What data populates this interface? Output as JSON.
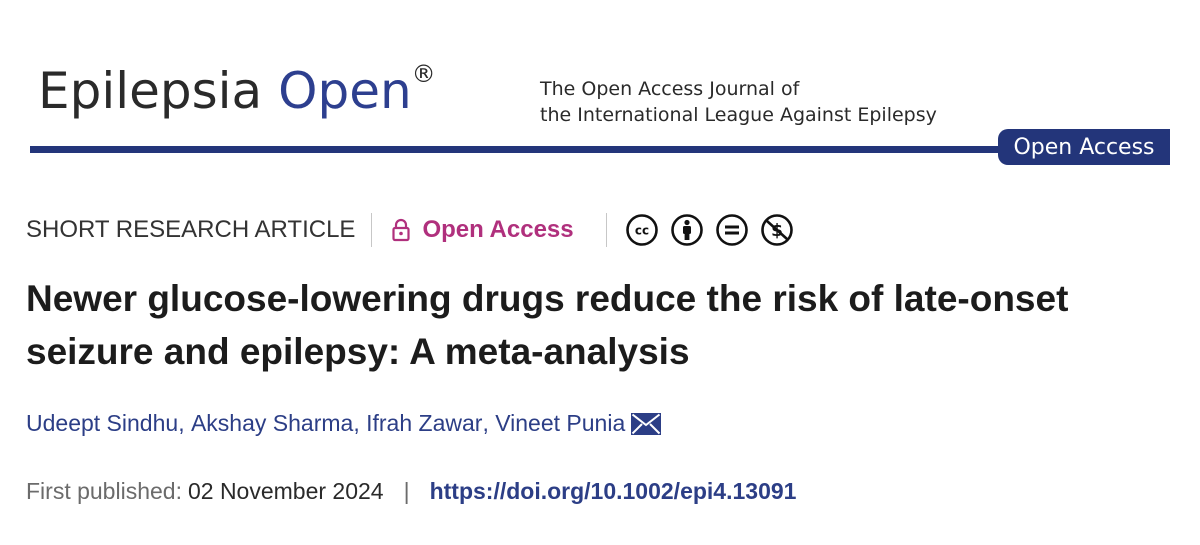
{
  "journal": {
    "name_part1": "Epilepsia",
    "name_part2": "Open",
    "registered_mark": "®",
    "tagline_line1": "The Open Access Journal of",
    "tagline_line2": "the International League Against Epilepsy",
    "tab_label": "Open Access",
    "brand_color": "#23357a"
  },
  "article": {
    "type": "SHORT RESEARCH ARTICLE",
    "access_label": "Open Access",
    "access_color": "#b0307d",
    "license_icons": [
      "cc-icon",
      "by-attribution-icon",
      "no-derivatives-icon",
      "non-commercial-icon"
    ],
    "title": "Newer glucose-lowering drugs reduce the risk of late-onset seizure and epilepsy: A meta-analysis",
    "authors": [
      {
        "name": "Udeept Sindhu",
        "sep": ","
      },
      {
        "name": "Akshay Sharma",
        "sep": ","
      },
      {
        "name": "Ifrah Zawar",
        "sep": ","
      },
      {
        "name": "Vineet Punia",
        "sep": ""
      }
    ],
    "first_published_label": "First published:",
    "first_published_date": "02 November 2024",
    "separator": "|",
    "doi": "https://doi.org/10.1002/epi4.13091"
  }
}
